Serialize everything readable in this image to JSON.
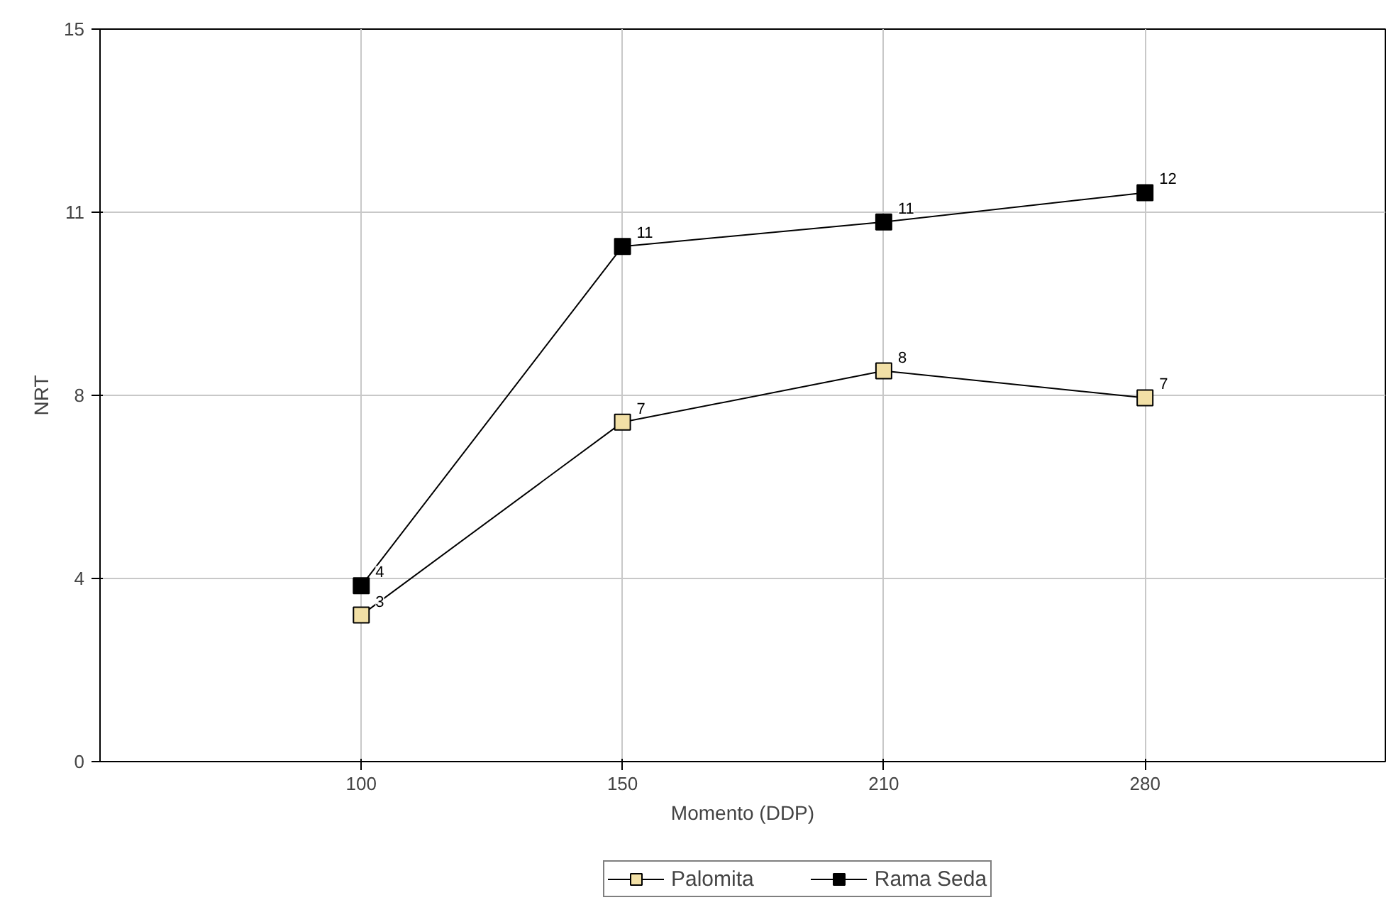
{
  "chart_data": {
    "type": "line",
    "xlabel": "Momento (DDP)",
    "ylabel": "NRT",
    "categories": [
      "100",
      "150",
      "210",
      "280"
    ],
    "ylim": [
      0,
      15
    ],
    "yticks": [
      0,
      {
        "value": 3.75,
        "label": "4"
      },
      {
        "value": 7.5,
        "label": "8"
      },
      {
        "value": 11.25,
        "label": "11"
      },
      15
    ],
    "grid": true,
    "legend": "bottom",
    "marker": "square",
    "line_style": "solid",
    "series": [
      {
        "name": "Palomita",
        "color": "#f2e0a6",
        "values": [
          3.0,
          6.95,
          8.0,
          7.45
        ],
        "value_labels": [
          "3",
          "7",
          "8",
          "7"
        ]
      },
      {
        "name": "Rama Seda",
        "color": "#000000",
        "values": [
          3.6,
          10.55,
          11.05,
          11.65
        ],
        "value_labels": [
          "4",
          "11",
          "11",
          "12"
        ]
      }
    ]
  }
}
